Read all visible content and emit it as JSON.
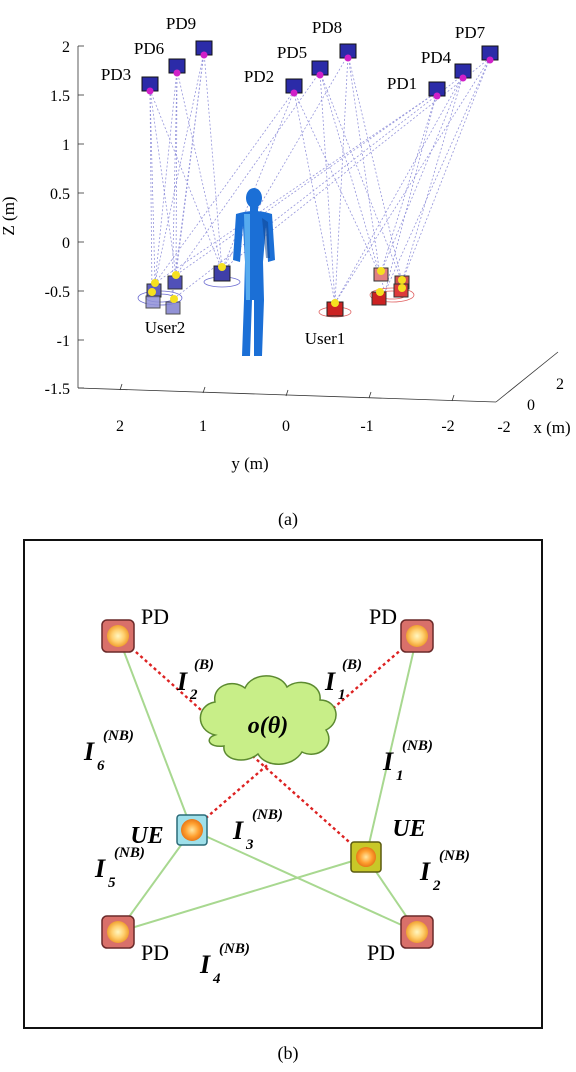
{
  "fig_a": {
    "caption": "(a)",
    "z_axis": {
      "label": "Z (m)",
      "ticks": [
        "2",
        "1.5",
        "1",
        "0.5",
        "0",
        "-0.5",
        "-1",
        "-1.5"
      ]
    },
    "y_axis": {
      "label": "y (m)",
      "ticks": [
        "2",
        "1",
        "0",
        "-1",
        "-2"
      ]
    },
    "x_axis": {
      "label": "x (m)",
      "ticks": [
        "2",
        "0",
        "-2"
      ]
    },
    "pd_labels": [
      "PD9",
      "PD6",
      "PD3",
      "PD8",
      "PD5",
      "PD2",
      "PD7",
      "PD4",
      "PD1"
    ],
    "users": [
      "User2",
      "User1"
    ],
    "colors": {
      "pd": "#2b2ba8",
      "user1": "#cc2222",
      "user2": "#4a4ab8",
      "human": "#1b6fd6",
      "link": "#8a8ad8"
    }
  },
  "fig_b": {
    "caption": "(b)",
    "pd_label": "PD",
    "ue_label": "UE",
    "obstacle": "o(θ)",
    "links": {
      "I2B": {
        "base": "I",
        "sub": "2",
        "sup": "(B)"
      },
      "I1B": {
        "base": "I",
        "sub": "1",
        "sup": "(B)"
      },
      "I6NB": {
        "base": "I",
        "sub": "6",
        "sup": "(NB)"
      },
      "I1NB": {
        "base": "I",
        "sub": "1",
        "sup": "(NB)"
      },
      "I3NB": {
        "base": "I",
        "sub": "3",
        "sup": "(NB)"
      },
      "I5NB": {
        "base": "I",
        "sub": "5",
        "sup": "(NB)"
      },
      "I2NB": {
        "base": "I",
        "sub": "2",
        "sup": "(NB)"
      },
      "I4NB": {
        "base": "I",
        "sub": "4",
        "sup": "(NB)"
      }
    },
    "colors": {
      "pd_box": "#d9706a",
      "ue1_box": "#9fe0ea",
      "ue2_box": "#c8c828",
      "blocked": "#dd2222",
      "los": "#a8d890",
      "cloud": "#c8ee88"
    }
  }
}
